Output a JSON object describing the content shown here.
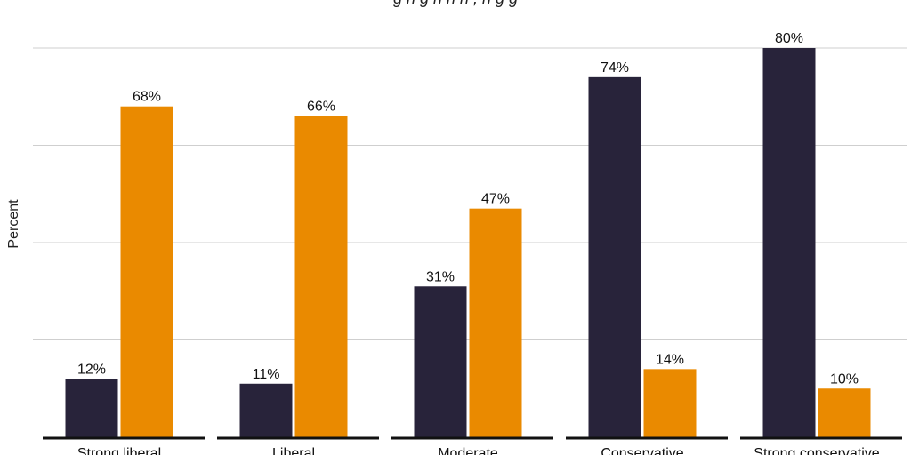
{
  "subtitle": "g    h   g      h   h     h  , h   g g  ",
  "chart_data": {
    "type": "bar",
    "ylabel": "Percent",
    "categories": [
      "Strong liberal",
      "Liberal",
      "Moderate",
      "Conservative",
      "Strong conservative"
    ],
    "series": [
      {
        "color": "#28233a",
        "values": [
          12,
          11,
          31,
          74,
          80
        ],
        "labels": [
          "12%",
          "11%",
          "31%",
          "74%",
          "80%"
        ]
      },
      {
        "color": "#ea8a00",
        "values": [
          68,
          66,
          47,
          14,
          10
        ],
        "labels": [
          "68%",
          "66%",
          "47%",
          "14%",
          "10%"
        ]
      }
    ],
    "ylim": [
      0,
      80
    ],
    "y_gridlines": [
      20,
      40,
      60,
      80
    ],
    "grid": true,
    "legend": "none"
  }
}
